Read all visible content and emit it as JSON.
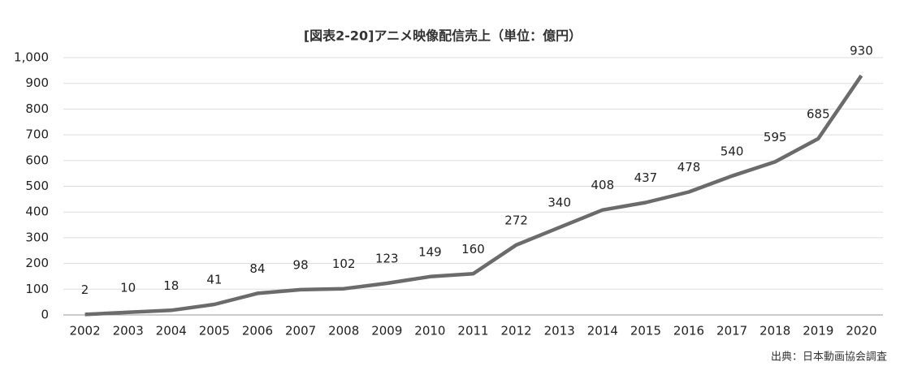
{
  "chart_data": {
    "type": "line",
    "title": "[図表2-20]アニメ映像配信売上（単位：億円）",
    "source": "出典：日本動画協会調査",
    "categories": [
      "2002",
      "2003",
      "2004",
      "2005",
      "2006",
      "2007",
      "2008",
      "2009",
      "2010",
      "2011",
      "2012",
      "2013",
      "2014",
      "2015",
      "2016",
      "2017",
      "2018",
      "2019",
      "2020"
    ],
    "values": [
      2,
      10,
      18,
      41,
      84,
      98,
      102,
      123,
      149,
      160,
      272,
      340,
      408,
      437,
      478,
      540,
      595,
      685,
      930
    ],
    "color": "#6b6b6b",
    "ylim": [
      0,
      1000
    ],
    "yticks": [
      0,
      100,
      200,
      300,
      400,
      500,
      600,
      700,
      800,
      900,
      {
        "value": 1000,
        "label": "1,000"
      }
    ],
    "grid": true
  }
}
